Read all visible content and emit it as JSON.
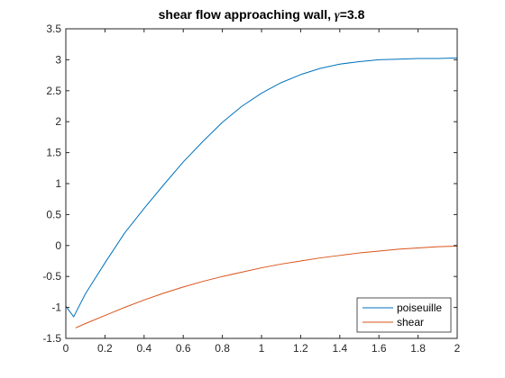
{
  "chart_data": {
    "type": "line",
    "title": "shear flow approaching wall, ",
    "title_symbol": "γ",
    "title_suffix": "=3.8",
    "xlabel": "",
    "ylabel": "",
    "xlim": [
      0,
      2
    ],
    "ylim": [
      -1.5,
      3.5
    ],
    "xticks": [
      0,
      0.2,
      0.4,
      0.6,
      0.8,
      1,
      1.2,
      1.4,
      1.6,
      1.8,
      2
    ],
    "xtick_labels": [
      "0",
      "0.2",
      "0.4",
      "0.6",
      "0.8",
      "1",
      "1.2",
      "1.4",
      "1.6",
      "1.8",
      "2"
    ],
    "yticks": [
      -1.5,
      -1,
      -0.5,
      0,
      0.5,
      1,
      1.5,
      2,
      2.5,
      3,
      3.5
    ],
    "ytick_labels": [
      "-1.5",
      "-1",
      "-0.5",
      "0",
      "0.5",
      "1",
      "1.5",
      "2",
      "2.5",
      "3",
      "3.5"
    ],
    "grid": false,
    "legend_position": "bottom-right",
    "series": [
      {
        "name": "poiseuille",
        "color": "#0072BD",
        "x": [
          0,
          0.04,
          0.1,
          0.2,
          0.3,
          0.4,
          0.5,
          0.6,
          0.7,
          0.8,
          0.9,
          1.0,
          1.1,
          1.2,
          1.3,
          1.4,
          1.5,
          1.6,
          1.7,
          1.8,
          1.85,
          1.9,
          2.0
        ],
        "y": [
          -0.98,
          -1.15,
          -0.78,
          -0.28,
          0.2,
          0.6,
          0.98,
          1.35,
          1.68,
          1.99,
          2.25,
          2.46,
          2.63,
          2.76,
          2.86,
          2.93,
          2.97,
          3.0,
          3.01,
          3.02,
          3.02,
          3.02,
          3.03
        ]
      },
      {
        "name": "shear",
        "color": "#D95319",
        "x": [
          0.05,
          0.1,
          0.2,
          0.3,
          0.4,
          0.5,
          0.6,
          0.7,
          0.8,
          0.9,
          1.0,
          1.1,
          1.2,
          1.3,
          1.4,
          1.5,
          1.6,
          1.7,
          1.8,
          1.9,
          2.0
        ],
        "y": [
          -1.33,
          -1.26,
          -1.13,
          -1.0,
          -0.88,
          -0.77,
          -0.67,
          -0.58,
          -0.5,
          -0.43,
          -0.36,
          -0.3,
          -0.25,
          -0.2,
          -0.16,
          -0.12,
          -0.09,
          -0.06,
          -0.04,
          -0.02,
          -0.01
        ]
      }
    ]
  }
}
